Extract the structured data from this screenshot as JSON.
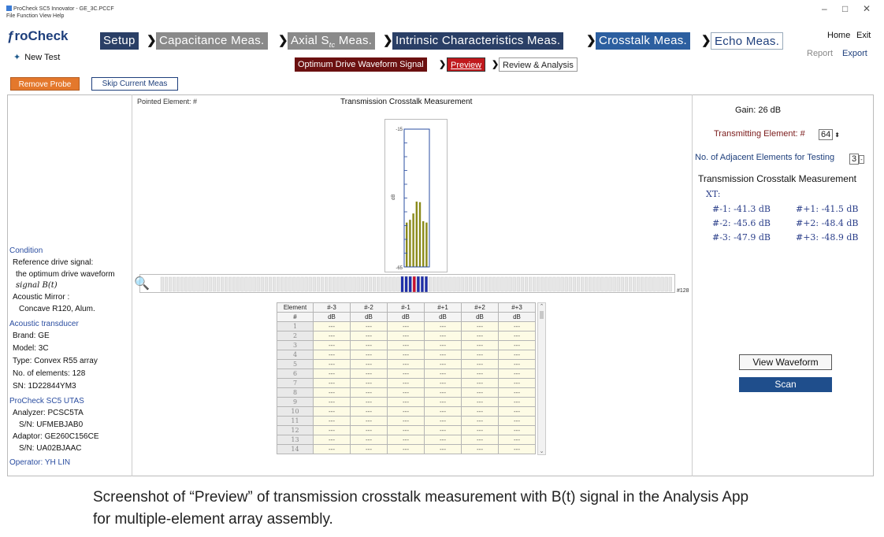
{
  "window": {
    "title": "ProCheck SC5 Innovator - GE_3C.PCCF",
    "menu": "File   Function   View   Help",
    "minimize": "–",
    "restore": "□",
    "close": "✕"
  },
  "logo": "ƒroCheck",
  "new_test": "New Test",
  "steps": [
    "Setup",
    "Capacitance Meas.",
    "Axial S",
    "tc",
    " Meas.",
    "Intrinsic Characteristics Meas.",
    "Crosstalk Meas.",
    "Echo Meas."
  ],
  "chevron": "❯",
  "top_right": {
    "home": "Home",
    "exit": "Exit",
    "report": "Report",
    "export": "Export"
  },
  "substeps": [
    "Optimum Drive Waveform Signal",
    "Preview",
    "Review & Analysis"
  ],
  "buttons": {
    "remove_probe": "Remove Probe",
    "skip": "Skip Current Meas"
  },
  "left_panel": {
    "condition_h": "Condition",
    "ref": "Reference drive signal:",
    "ref2": "the optimum drive waveform",
    "ref3": "signal B(t)",
    "mirror": "Acoustic Mirror :",
    "mirror2": "Concave R120, Alum.",
    "transducer_h": "Acoustic transducer",
    "brand": "Brand: GE",
    "model": "Model: 3C",
    "type": "Type: Convex R55 array",
    "elements": "No. of elements: 128",
    "sn": "SN: 1D22844YM3",
    "utas_h": "ProCheck SC5 UTAS",
    "analyzer": "Analyzer: PCSC5TA",
    "analyzer_sn": "S/N: UFMEBJAB0",
    "adaptor": "Adaptor: GE260C156CE",
    "adaptor_sn": "S/N: UA02BJAAC",
    "operator": "Operator: YH LIN"
  },
  "center": {
    "pointed": "Pointed Element: #",
    "title": "Transmission Crosstalk Measurement",
    "y_top": "-15",
    "y_bottom": "-65",
    "unit": "dB",
    "probe_end": "#128"
  },
  "table": {
    "header1": [
      "Element",
      "#-3",
      "#-2",
      "#-1",
      "#+1",
      "#+2",
      "#+3"
    ],
    "header2": [
      "#",
      "dB",
      "dB",
      "dB",
      "dB",
      "dB",
      "dB"
    ],
    "empty": "---",
    "rows": [
      "1",
      "2",
      "3",
      "4",
      "5",
      "6",
      "7",
      "8",
      "9",
      "10",
      "11",
      "12",
      "13",
      "14"
    ]
  },
  "right_panel": {
    "gain": "Gain: 26 dB",
    "tx_label": "Transmitting Element: #",
    "tx_value": "64",
    "adj_label": "No. of Adjacent Elements for Testing",
    "adj_value": "3",
    "title": "Transmission Crosstalk Measurement",
    "xt": "XT:",
    "values": [
      [
        "#-1: -41.3 dB",
        "#+1: -41.5 dB"
      ],
      [
        "#-2: -45.6 dB",
        "#+2: -48.4 dB"
      ],
      [
        "#-3: -47.9 dB",
        "#+3: -48.9 dB"
      ]
    ],
    "view_waveform": "View Waveform",
    "scan": "Scan"
  },
  "chart_data": {
    "type": "bar",
    "ylabel": "dB",
    "ylim": [
      -65,
      -15
    ],
    "values": [
      -48.9,
      -47.9,
      -45.6,
      -41.3,
      -41.5,
      -48.4,
      -48.9
    ],
    "color": "#8a8a1a"
  },
  "caption": {
    "line1": "Screenshot of “Preview” of transmission crosstalk measurement with B(t) signal in the Analysis App",
    "line2": "for multiple-element array assembly."
  }
}
